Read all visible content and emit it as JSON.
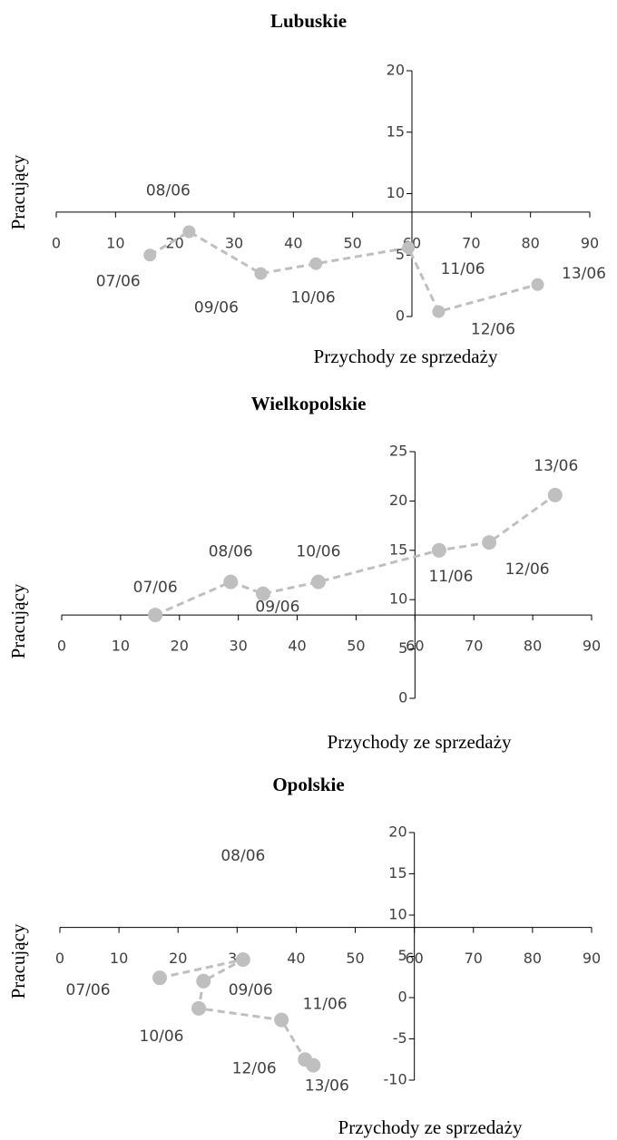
{
  "chart_data": [
    {
      "type": "line",
      "title": "Lubuskie",
      "x_label": "Przychody ze sprzedaży",
      "y_label": "Pracujący",
      "x": [
        15.8,
        22.4,
        34.5,
        43.8,
        59.4,
        64.5,
        81.2
      ],
      "values": [
        5.0,
        6.9,
        3.5,
        4.3,
        5.6,
        0.4,
        2.6
      ],
      "labels": [
        "07/06",
        "08/06",
        "09/06",
        "10/06",
        "11/06",
        "12/06",
        "13/06"
      ],
      "color": "#bfbfbf",
      "xlim": [
        0,
        90
      ],
      "xticks": [
        0,
        10,
        20,
        30,
        40,
        50,
        60,
        70,
        80,
        90
      ],
      "ylim": [
        0,
        20
      ],
      "yticks": [
        0,
        5,
        10,
        15,
        20
      ],
      "x_axis_at": 8.5,
      "y_axis_at": 60
    },
    {
      "type": "line",
      "title": "Wielkopolskie",
      "x_label": "Przychody ze sprzedaży",
      "y_label": "Pracujący",
      "x": [
        15.9,
        28.7,
        34.2,
        43.6,
        64.1,
        72.6,
        83.8
      ],
      "values": [
        8.45,
        11.8,
        10.6,
        11.8,
        15.0,
        15.8,
        20.6
      ],
      "labels": [
        "07/06",
        "08/06",
        "09/06",
        "10/06",
        "11/06",
        "12/06",
        "13/06"
      ],
      "color": "#bfbfbf",
      "xlim": [
        0,
        90
      ],
      "xticks": [
        0,
        10,
        20,
        30,
        40,
        50,
        60,
        70,
        80,
        90
      ],
      "ylim": [
        0,
        25
      ],
      "yticks": [
        0,
        5,
        10,
        15,
        20,
        25
      ],
      "x_axis_at": 8.45,
      "y_axis_at": 60
    },
    {
      "type": "line",
      "title": "Opolskie",
      "x_label": "Przychody ze sprzedaży",
      "y_label": "Pracujący",
      "x": [
        16.9,
        31.0,
        24.3,
        23.5,
        37.5,
        41.5,
        42.9
      ],
      "values": [
        2.4,
        4.6,
        2.0,
        -1.3,
        -2.7,
        -7.5,
        -8.2
      ],
      "labels": [
        "07/06",
        "08/06",
        "09/06",
        "10/06",
        "11/06",
        "12/06",
        "13/06"
      ],
      "color": "#bfbfbf",
      "xlim": [
        0,
        90
      ],
      "xticks": [
        0,
        10,
        20,
        30,
        40,
        50,
        60,
        70,
        80,
        90
      ],
      "ylim": [
        -10,
        20
      ],
      "yticks": [
        -10,
        -5,
        0,
        5,
        10,
        15,
        20
      ],
      "x_axis_at": 8.5,
      "y_axis_at": 60
    }
  ]
}
